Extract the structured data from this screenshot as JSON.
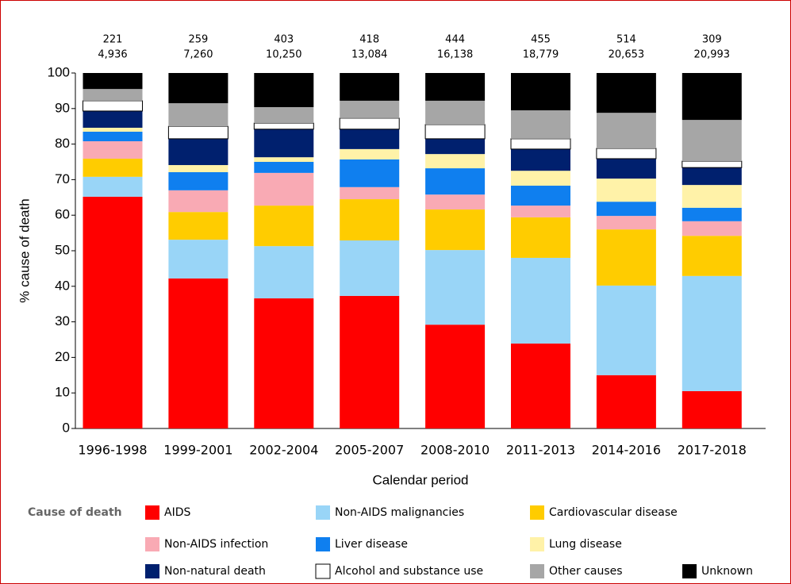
{
  "chart_data": {
    "type": "stacked_bar",
    "ylabel": "% cause of death",
    "xlabel": "Calendar period",
    "legend_title": "Cause of death",
    "categories": [
      "1996-1998",
      "1999-2001",
      "2002-2004",
      "2005-2007",
      "2008-2010",
      "2011-2013",
      "2014-2016",
      "2017-2018"
    ],
    "annotations": [
      [
        "221",
        "4,936"
      ],
      [
        "259",
        "7,260"
      ],
      [
        "403",
        "10,250"
      ],
      [
        "418",
        "13,084"
      ],
      [
        "444",
        "16,138"
      ],
      [
        "455",
        "18,779"
      ],
      [
        "514",
        "20,653"
      ],
      [
        "309",
        "20,993"
      ]
    ],
    "ylim": [
      0,
      100
    ],
    "yticks": [
      0,
      10,
      20,
      30,
      40,
      50,
      60,
      70,
      80,
      90,
      100
    ],
    "series": [
      {
        "name": "AIDS",
        "color": "#ff0000",
        "values": [
          65.2,
          42.2,
          36.6,
          37.3,
          29.2,
          23.9,
          15,
          10.5
        ]
      },
      {
        "name": "Non-AIDS malignancies",
        "color": "#99d5f7",
        "values": [
          5.6,
          10.9,
          14.7,
          15.6,
          21,
          24.1,
          25.2,
          32.4
        ]
      },
      {
        "name": "Cardiovascular disease",
        "color": "#ffcc00",
        "values": [
          5.1,
          7.8,
          11.4,
          11.6,
          11.4,
          11.4,
          15.8,
          11.3
        ]
      },
      {
        "name": "Non-AIDS infection",
        "color": "#f9aab4",
        "values": [
          4.9,
          6.1,
          9.2,
          3.4,
          4.2,
          3.3,
          3.8,
          4.1
        ]
      },
      {
        "name": "Liver disease",
        "color": "#0f7fef",
        "values": [
          2.7,
          5.1,
          3.1,
          7.8,
          7.4,
          5.6,
          4,
          3.8
        ]
      },
      {
        "name": "Lung disease",
        "color": "#fff2a8",
        "values": [
          1.1,
          2,
          1.3,
          2.9,
          4,
          4.2,
          6.5,
          6.4
        ]
      },
      {
        "name": "Non-natural death",
        "color": "#00206e",
        "values": [
          4.7,
          7.4,
          7.9,
          5.6,
          4.3,
          6.1,
          5.6,
          4.9
        ]
      },
      {
        "name": "Alcohol and substance use",
        "color": "#ffffff",
        "values": [
          2.9,
          3.5,
          1.7,
          3.1,
          4,
          2.9,
          2.9,
          1.8
        ]
      },
      {
        "name": "Other causes",
        "color": "#a6a6a6",
        "values": [
          3.3,
          6.5,
          4.5,
          4.9,
          6.7,
          8,
          10,
          11.6
        ]
      },
      {
        "name": "Unknown",
        "color": "#000000",
        "values": [
          4.5,
          8.5,
          9.6,
          7.8,
          7.8,
          10.5,
          11.2,
          13.2
        ]
      }
    ]
  }
}
